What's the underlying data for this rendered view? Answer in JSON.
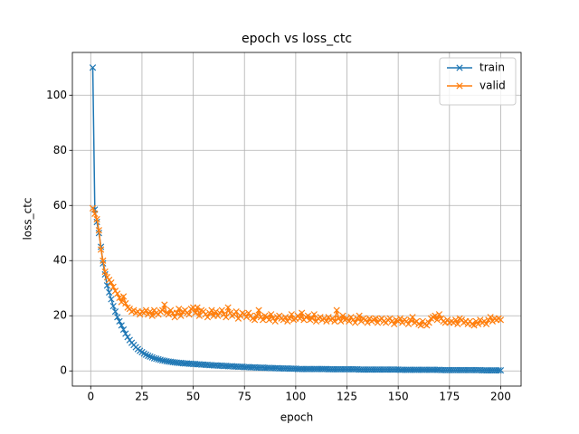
{
  "chart_data": {
    "type": "line",
    "title": "epoch vs loss_ctc",
    "x_label": "epoch",
    "y_label": "loss_ctc",
    "x": [
      1,
      2,
      3,
      4,
      5,
      6,
      7,
      8,
      9,
      10,
      11,
      12,
      13,
      14,
      15,
      16,
      17,
      18,
      19,
      20,
      21,
      22,
      23,
      24,
      25,
      26,
      27,
      28,
      29,
      30,
      31,
      32,
      33,
      34,
      35,
      36,
      37,
      38,
      39,
      40,
      41,
      42,
      43,
      44,
      45,
      46,
      47,
      48,
      49,
      50,
      51,
      52,
      53,
      54,
      55,
      56,
      57,
      58,
      59,
      60,
      61,
      62,
      63,
      64,
      65,
      66,
      67,
      68,
      69,
      70,
      71,
      72,
      73,
      74,
      75,
      76,
      77,
      78,
      79,
      80,
      81,
      82,
      83,
      84,
      85,
      86,
      87,
      88,
      89,
      90,
      91,
      92,
      93,
      94,
      95,
      96,
      97,
      98,
      99,
      100,
      101,
      102,
      103,
      104,
      105,
      106,
      107,
      108,
      109,
      110,
      111,
      112,
      113,
      114,
      115,
      116,
      117,
      118,
      119,
      120,
      121,
      122,
      123,
      124,
      125,
      126,
      127,
      128,
      129,
      130,
      131,
      132,
      133,
      134,
      135,
      136,
      137,
      138,
      139,
      140,
      141,
      142,
      143,
      144,
      145,
      146,
      147,
      148,
      149,
      150,
      151,
      152,
      153,
      154,
      155,
      156,
      157,
      158,
      159,
      160,
      161,
      162,
      163,
      164,
      165,
      166,
      167,
      168,
      169,
      170,
      171,
      172,
      173,
      174,
      175,
      176,
      177,
      178,
      179,
      180,
      181,
      182,
      183,
      184,
      185,
      186,
      187,
      188,
      189,
      190,
      191,
      192,
      193,
      194,
      195,
      196,
      197,
      198,
      199,
      200
    ],
    "series": [
      {
        "name": "train",
        "color": "#1f77b4",
        "values": [
          110,
          58.5,
          54,
          50,
          45,
          39,
          35,
          31,
          28.5,
          26,
          23.5,
          21.5,
          19.5,
          18,
          16.5,
          15,
          13.5,
          12.3,
          11.2,
          10.2,
          9.4,
          8.6,
          7.9,
          7.3,
          6.8,
          6.3,
          5.9,
          5.5,
          5.2,
          4.9,
          4.6,
          4.4,
          4.2,
          4.0,
          3.8,
          3.7,
          3.5,
          3.4,
          3.3,
          3.2,
          3.1,
          3.0,
          2.9,
          2.9,
          2.8,
          2.7,
          2.7,
          2.6,
          2.6,
          2.5,
          2.5,
          2.4,
          2.4,
          2.3,
          2.3,
          2.2,
          2.2,
          2.1,
          2.1,
          2.0,
          2.0,
          1.9,
          1.9,
          1.9,
          1.8,
          1.8,
          1.7,
          1.7,
          1.7,
          1.6,
          1.6,
          1.5,
          1.5,
          1.5,
          1.4,
          1.4,
          1.4,
          1.3,
          1.3,
          1.3,
          1.2,
          1.2,
          1.2,
          1.2,
          1.1,
          1.1,
          1.1,
          1.0,
          1.0,
          1.0,
          1.0,
          0.9,
          0.9,
          0.9,
          0.9,
          0.9,
          0.8,
          0.8,
          0.8,
          0.8,
          0.7,
          0.7,
          0.7,
          0.7,
          0.7,
          0.7,
          0.7,
          0.7,
          0.7,
          0.7,
          0.7,
          0.7,
          0.7,
          0.7,
          0.7,
          0.6,
          0.6,
          0.6,
          0.6,
          0.6,
          0.6,
          0.6,
          0.6,
          0.6,
          0.6,
          0.6,
          0.6,
          0.6,
          0.6,
          0.6,
          0.5,
          0.5,
          0.5,
          0.5,
          0.5,
          0.5,
          0.5,
          0.5,
          0.5,
          0.5,
          0.5,
          0.5,
          0.5,
          0.5,
          0.5,
          0.5,
          0.5,
          0.5,
          0.5,
          0.5,
          0.4,
          0.4,
          0.4,
          0.4,
          0.4,
          0.4,
          0.4,
          0.4,
          0.4,
          0.4,
          0.4,
          0.4,
          0.4,
          0.4,
          0.4,
          0.4,
          0.4,
          0.4,
          0.4,
          0.4,
          0.3,
          0.3,
          0.3,
          0.3,
          0.3,
          0.3,
          0.3,
          0.3,
          0.3,
          0.3,
          0.3,
          0.3,
          0.3,
          0.3,
          0.3,
          0.3,
          0.3,
          0.3,
          0.3,
          0.3,
          0.2,
          0.2,
          0.2,
          0.2,
          0.2,
          0.2,
          0.2,
          0.2,
          0.2,
          0.2
        ]
      },
      {
        "name": "valid",
        "color": "#ff7f0e",
        "values": [
          59,
          57,
          55,
          51,
          44,
          40,
          36,
          34,
          33,
          32,
          30.5,
          29,
          28,
          26.5,
          25,
          27,
          24.5,
          23,
          22.5,
          21.5,
          22,
          21,
          21.5,
          20.5,
          21.5,
          21,
          22,
          20.5,
          21.5,
          20,
          22,
          21,
          20.5,
          21.5,
          22,
          24,
          21,
          20.5,
          22,
          21,
          19.5,
          21,
          22.5,
          20,
          21.5,
          22,
          21,
          20.5,
          22.5,
          23,
          21,
          23,
          20,
          22,
          21.5,
          20.5,
          19.5,
          21,
          22,
          20,
          21.5,
          20,
          21,
          22,
          20.5,
          19.5,
          23,
          21,
          20,
          20.5,
          21.5,
          19,
          20,
          21,
          20.5,
          19.5,
          21,
          20,
          19,
          18.5,
          20,
          22,
          19.5,
          18.5,
          20,
          19.5,
          18.5,
          20.5,
          19,
          18,
          19.5,
          20,
          19,
          18.5,
          19.5,
          18,
          19,
          20.5,
          18.5,
          19,
          20,
          19,
          21,
          18.5,
          19.5,
          20,
          18.5,
          19,
          20.5,
          18,
          19,
          19.5,
          18.5,
          19,
          18,
          19.5,
          18.5,
          19,
          18,
          22,
          19,
          18,
          20,
          18.5,
          19,
          18,
          19.5,
          18.5,
          17.5,
          19,
          20,
          18,
          19,
          18.5,
          17.5,
          19,
          18,
          18.5,
          19,
          17.5,
          18.5,
          19,
          18,
          17.5,
          18.5,
          19,
          18,
          17,
          18.5,
          18,
          19,
          17.5,
          18.5,
          18,
          17,
          18.5,
          19.5,
          17.5,
          18,
          17,
          16.5,
          18,
          17,
          16.5,
          17.5,
          19,
          19.5,
          20,
          18.5,
          20.5,
          19,
          18,
          17.5,
          18.5,
          17.5,
          18,
          17.5,
          18.5,
          17,
          19,
          18.5,
          17.5,
          18,
          17,
          18,
          17,
          16.5,
          18,
          17,
          18.5,
          17.5,
          18,
          17,
          18.5,
          19.5,
          18,
          19,
          18.5,
          19,
          18.5
        ]
      }
    ],
    "xlim": [
      -8.95,
      209.95
    ],
    "ylim": [
      -5.5,
      115.5
    ],
    "xticks": [
      0,
      25,
      50,
      75,
      100,
      125,
      150,
      175,
      200
    ],
    "yticks": [
      0,
      20,
      40,
      60,
      80,
      100
    ],
    "grid": true,
    "legend": "upper right"
  }
}
